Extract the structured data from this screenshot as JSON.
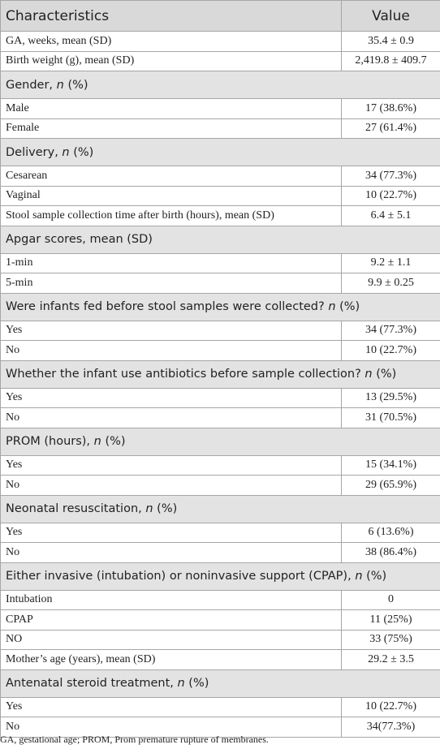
{
  "table": {
    "header": [
      "Characteristics",
      "Value"
    ],
    "rows": [
      {
        "label": "GA, weeks, mean (SD)",
        "value": "35.4 ± 0.9"
      },
      {
        "label": "Birth weight (g), mean (SD)",
        "value": "2,419.8 ± 409.7"
      },
      {
        "section": [
          "Gender, ",
          "n",
          " (%)"
        ]
      },
      {
        "label": "Male",
        "value": "17 (38.6%)"
      },
      {
        "label": "Female",
        "value": "27 (61.4%)"
      },
      {
        "section": [
          "Delivery, ",
          "n",
          " (%)"
        ]
      },
      {
        "label": "Cesarean",
        "value": "34 (77.3%)"
      },
      {
        "label": "Vaginal",
        "value": "10 (22.7%)"
      },
      {
        "label": "Stool sample collection time after birth (hours), mean (SD)",
        "value": "6.4 ± 5.1"
      },
      {
        "section": [
          "Apgar scores, mean (SD)"
        ]
      },
      {
        "label": "1-min",
        "value": "9.2 ± 1.1"
      },
      {
        "label": "5-min",
        "value": "9.9 ± 0.25"
      },
      {
        "section": [
          "Were infants fed before stool samples were collected? ",
          "n",
          " (%)"
        ]
      },
      {
        "label": "Yes",
        "value": "34 (77.3%)"
      },
      {
        "label": "No",
        "value": "10 (22.7%)"
      },
      {
        "section": [
          "Whether the infant use antibiotics before sample collection? ",
          "n",
          " (%)"
        ]
      },
      {
        "label": "Yes",
        "value": "13 (29.5%)"
      },
      {
        "label": "No",
        "value": "31 (70.5%)"
      },
      {
        "section": [
          "PROM (hours), ",
          "n",
          " (%)"
        ]
      },
      {
        "label": "Yes",
        "value": "15 (34.1%)"
      },
      {
        "label": "No",
        "value": "29 (65.9%)"
      },
      {
        "section": [
          "Neonatal resuscitation, ",
          "n",
          " (%)"
        ]
      },
      {
        "label": "Yes",
        "value": "6 (13.6%)"
      },
      {
        "label": "No",
        "value": "38 (86.4%)"
      },
      {
        "section": [
          "Either invasive (intubation) or noninvasive support (CPAP), ",
          "n",
          " (%)"
        ]
      },
      {
        "label": "Intubation",
        "value": "0"
      },
      {
        "label": "CPAP",
        "value": "11 (25%)"
      },
      {
        "label": "NO",
        "value": "33 (75%)"
      },
      {
        "label": "Mother’s age (years), mean (SD)",
        "value": "29.2 ± 3.5"
      },
      {
        "section": [
          "Antenatal steroid treatment, ",
          "n",
          " (%)"
        ]
      },
      {
        "label": "Yes",
        "value": "10 (22.7%)"
      },
      {
        "label": "No",
        "value": "34(77.3%)"
      }
    ],
    "footnote": "GA, gestational age; PROM, Prom premature rupture of membranes."
  }
}
